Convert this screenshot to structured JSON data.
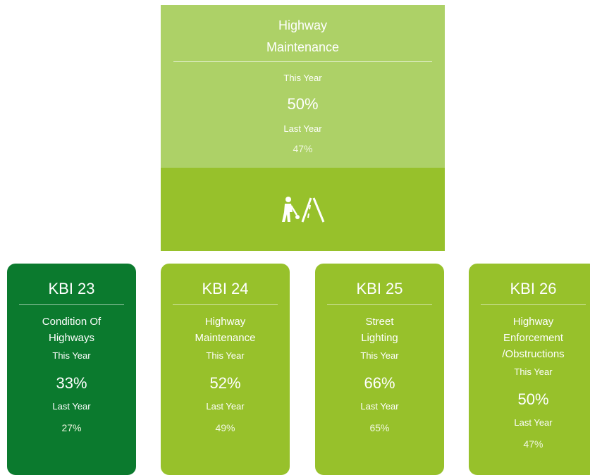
{
  "header_card": {
    "title": [
      "Highway",
      "Maintenance"
    ],
    "this_year_label": "This Year",
    "this_year": "50%",
    "last_year_label": "Last Year",
    "last_year": "47%"
  },
  "cards": [
    {
      "code": "KBI 23",
      "description": [
        "Condition Of",
        "Highways"
      ],
      "this_year_label": "This Year",
      "this_year": "33%",
      "last_year_label": "Last Year",
      "last_year": "27%"
    },
    {
      "code": "KBI 24",
      "description": [
        "Highway",
        "Maintenance"
      ],
      "this_year_label": "This Year",
      "this_year": "52%",
      "last_year_label": "Last Year",
      "last_year": "49%"
    },
    {
      "code": "KBI 25",
      "description": [
        "Street",
        "Lighting"
      ],
      "this_year_label": "This Year",
      "this_year": "66%",
      "last_year_label": "Last Year",
      "last_year": "65%"
    },
    {
      "code": "KBI 26",
      "description": [
        "Highway",
        "Enforcement",
        "/Obstructions"
      ],
      "this_year_label": "This Year",
      "this_year": "50%",
      "last_year_label": "Last Year",
      "last_year": "47%"
    }
  ]
}
